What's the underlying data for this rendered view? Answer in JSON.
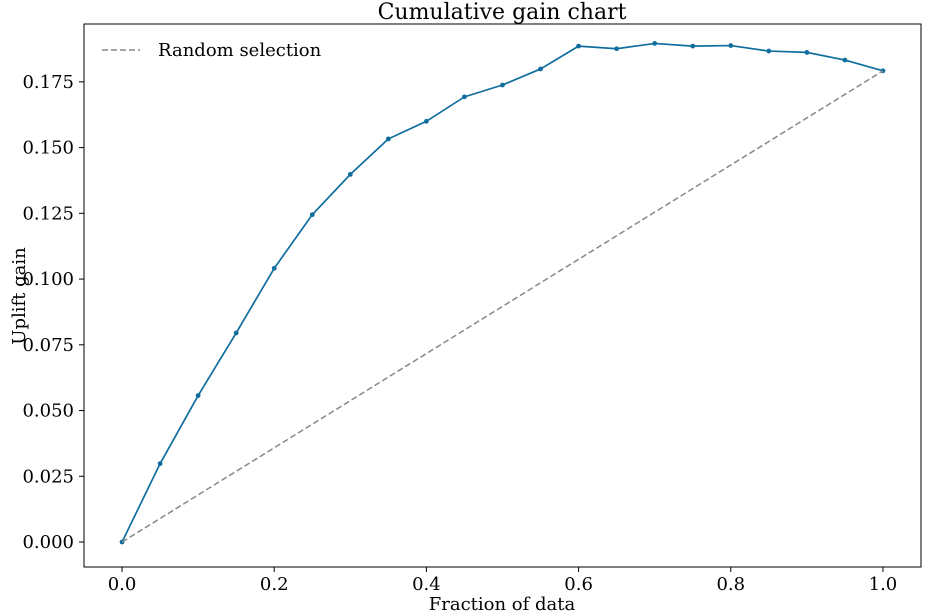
{
  "chart_data": {
    "type": "line",
    "title": "Cumulative gain chart",
    "xlabel": "Fraction of data",
    "ylabel": "Uplift gain",
    "xlim": [
      -0.05,
      1.05
    ],
    "ylim": [
      -0.0095,
      0.197
    ],
    "xticks": [
      0.0,
      0.2,
      0.4,
      0.6,
      0.8,
      1.0
    ],
    "xtick_labels": [
      "0.0",
      "0.2",
      "0.4",
      "0.6",
      "0.8",
      "1.0"
    ],
    "yticks": [
      0.0,
      0.025,
      0.05,
      0.075,
      0.1,
      0.125,
      0.15,
      0.175
    ],
    "ytick_labels": [
      "0.000",
      "0.025",
      "0.050",
      "0.075",
      "0.100",
      "0.125",
      "0.150",
      "0.175"
    ],
    "grid": false,
    "legend_position": "top-left",
    "series": [
      {
        "name": "",
        "color": "#0f6e9e",
        "style": "solid",
        "marker": "dot",
        "x": [
          0.0,
          0.05,
          0.1,
          0.15,
          0.2,
          0.25,
          0.3,
          0.35,
          0.4,
          0.45,
          0.5,
          0.55,
          0.6,
          0.65,
          0.7,
          0.75,
          0.8,
          0.85,
          0.9,
          0.95,
          1.0
        ],
        "y": [
          0.0,
          0.0298,
          0.0557,
          0.0795,
          0.1041,
          0.1245,
          0.1398,
          0.1533,
          0.16,
          0.1693,
          0.1738,
          0.1799,
          0.1886,
          0.1876,
          0.1896,
          0.1886,
          0.1888,
          0.1867,
          0.1862,
          0.1833,
          0.1792
        ]
      },
      {
        "name": "Random selection",
        "color": "#888888",
        "style": "dashed",
        "marker": "none",
        "x": [
          0.0,
          1.0
        ],
        "y": [
          0.0,
          0.1792
        ]
      }
    ]
  }
}
